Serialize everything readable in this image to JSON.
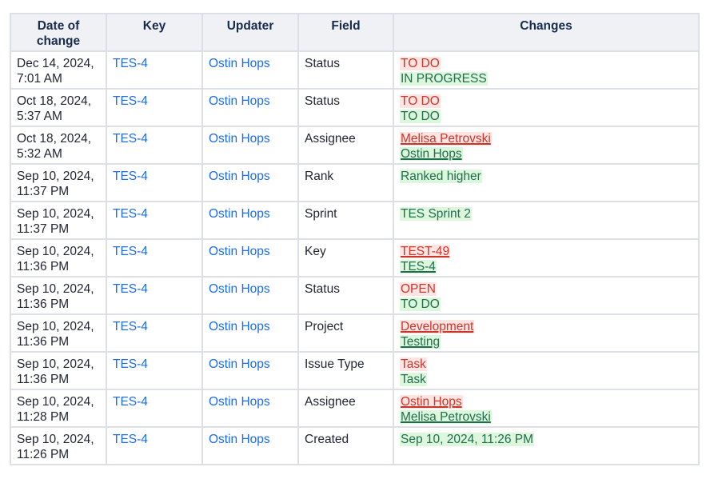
{
  "headers": [
    "Date of change",
    "Key",
    "Updater",
    "Field",
    "Changes"
  ],
  "colors": {
    "old_text": "#c9372c",
    "old_bg": "#ffe4e1",
    "new_text": "#216e4e",
    "new_bg": "#dcf7dc",
    "link": "#1d6ce8"
  },
  "rows": [
    {
      "date": "Dec 14, 2024, 7:01 AM",
      "key": "TES-4",
      "updater": "Ostin Hops",
      "field": "Status",
      "old": "TO DO",
      "new": "IN PROGRESS",
      "underline": false
    },
    {
      "date": "Oct 18, 2024, 5:37 AM",
      "key": "TES-4",
      "updater": "Ostin Hops",
      "field": "Status",
      "old": "TO DO",
      "new": "TO DO",
      "underline": false
    },
    {
      "date": "Oct 18, 2024, 5:32 AM",
      "key": "TES-4",
      "updater": "Ostin Hops",
      "field": "Assignee",
      "old": "Melisa Petrovski",
      "new": "Ostin Hops",
      "underline": true
    },
    {
      "date": "Sep 10, 2024, 11:37 PM",
      "key": "TES-4",
      "updater": "Ostin Hops",
      "field": "Rank",
      "old": null,
      "new": "Ranked higher",
      "underline": false
    },
    {
      "date": "Sep 10, 2024, 11:37 PM",
      "key": "TES-4",
      "updater": "Ostin Hops",
      "field": "Sprint",
      "old": null,
      "new": "TES Sprint 2",
      "underline": false
    },
    {
      "date": "Sep 10, 2024, 11:36 PM",
      "key": "TES-4",
      "updater": "Ostin Hops",
      "field": "Key",
      "old": "TEST-49",
      "new": "TES-4",
      "underline": true
    },
    {
      "date": "Sep 10, 2024, 11:36 PM",
      "key": "TES-4",
      "updater": "Ostin Hops",
      "field": "Status",
      "old": "OPEN",
      "new": "TO DO",
      "underline": false
    },
    {
      "date": "Sep 10, 2024, 11:36 PM",
      "key": "TES-4",
      "updater": "Ostin Hops",
      "field": "Project",
      "old": "Development",
      "new": "Testing",
      "underline": true
    },
    {
      "date": "Sep 10, 2024, 11:36 PM",
      "key": "TES-4",
      "updater": "Ostin Hops",
      "field": "Issue Type",
      "old": "Task",
      "new": "Task",
      "underline": false
    },
    {
      "date": "Sep 10, 2024, 11:28 PM",
      "key": "TES-4",
      "updater": "Ostin Hops",
      "field": "Assignee",
      "old": "Ostin Hops",
      "new": "Melisa Petrovski",
      "underline": true
    },
    {
      "date": "Sep 10, 2024, 11:26 PM",
      "key": "TES-4",
      "updater": "Ostin Hops",
      "field": "Created",
      "old": null,
      "new": "Sep 10, 2024, 11:26 PM",
      "underline": false
    }
  ]
}
